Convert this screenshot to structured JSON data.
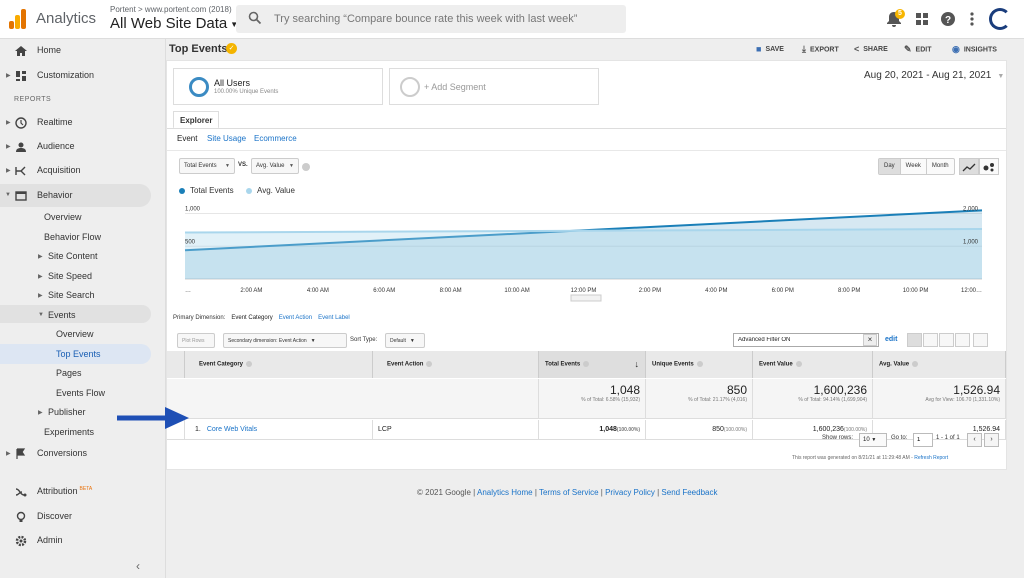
{
  "header": {
    "app_name": "Analytics",
    "account_path": "Portent > www.portent.com (2018)",
    "property_view": "All Web Site Data",
    "search_placeholder": "Try searching “Compare bounce rate this week with last week”",
    "notification_count": "5"
  },
  "sidebar": {
    "home": "Home",
    "customization": "Customization",
    "reports_header": "REPORTS",
    "realtime": "Realtime",
    "audience": "Audience",
    "acquisition": "Acquisition",
    "behavior": "Behavior",
    "behavior_children": {
      "overview": "Overview",
      "behavior_flow": "Behavior Flow",
      "site_content": "Site Content",
      "site_speed": "Site Speed",
      "site_search": "Site Search",
      "events": "Events",
      "events_children": {
        "overview": "Overview",
        "top_events": "Top Events",
        "pages": "Pages",
        "events_flow": "Events Flow"
      },
      "publisher": "Publisher",
      "experiments": "Experiments"
    },
    "conversions": "Conversions",
    "attribution": "Attribution",
    "attribution_badge": "BETA",
    "discover": "Discover",
    "admin": "Admin"
  },
  "report": {
    "title": "Top Events",
    "actions": {
      "save": "SAVE",
      "export": "EXPORT",
      "share": "SHARE",
      "edit": "EDIT",
      "insights": "INSIGHTS"
    },
    "segment": {
      "name": "All Users",
      "sub": "100.00% Unique Events"
    },
    "add_segment": "+ Add Segment",
    "date_range": "Aug 20, 2021 - Aug 21, 2021",
    "tab": "Explorer",
    "subtabs": [
      "Event",
      "Site Usage",
      "Ecommerce"
    ],
    "metric1": "Total Events",
    "vs": "VS.",
    "metric2": "Avg. Value",
    "granularity": [
      "Day",
      "Week",
      "Month"
    ],
    "legend": [
      "Total Events",
      "Avg. Value"
    ]
  },
  "chart_data": {
    "type": "line",
    "x": [
      "…",
      "2:00 AM",
      "4:00 AM",
      "6:00 AM",
      "8:00 AM",
      "10:00 AM",
      "12:00 PM",
      "2:00 PM",
      "4:00 PM",
      "6:00 PM",
      "8:00 PM",
      "10:00 PM",
      "12:00…"
    ],
    "y_left_ticks": [
      "1,000",
      "500"
    ],
    "y_right_ticks": [
      "2,000",
      "1,000"
    ],
    "series": [
      {
        "name": "Total Events",
        "axis": "left",
        "color": "#1a7fb8",
        "start": 440,
        "end": 1048
      },
      {
        "name": "Avg. Value",
        "axis": "right",
        "color": "#a9d6ec",
        "start": 1420,
        "end": 1526.94
      }
    ],
    "ylim_left": [
      0,
      1100
    ],
    "ylim_right": [
      0,
      2200
    ]
  },
  "table": {
    "primary_dimension_label": "Primary Dimension:",
    "dimensions": [
      "Event Category",
      "Event Action",
      "Event Label"
    ],
    "plot_rows": "Plot Rows",
    "secondary_dimension": "Secondary dimension: Event Action",
    "sort_type_label": "Sort Type:",
    "sort_type": "Default",
    "filter_value": "Advanced Filter ON",
    "edit_link": "edit",
    "columns": [
      "Event Category",
      "Event Action",
      "Total Events",
      "Unique Events",
      "Event Value",
      "Avg. Value"
    ],
    "totals": [
      {
        "value": "1,048",
        "sub": "% of Total: 6.58% (15,932)"
      },
      {
        "value": "850",
        "sub": "% of Total: 21.17% (4,016)"
      },
      {
        "value": "1,600,236",
        "sub": "% of Total: 94.14% (1,699,904)"
      },
      {
        "value": "1,526.94",
        "sub": "Avg for View: 106.70 (1,331.10%)"
      }
    ],
    "rows": [
      {
        "index": "1.",
        "category": "Core Web Vitals",
        "action": "LCP",
        "total_events": "1,048",
        "total_events_pct": "(100.00%)",
        "unique_events": "850",
        "unique_events_pct": "(100.00%)",
        "event_value": "1,600,236",
        "event_value_pct": "(100.00%)",
        "avg_value": "1,526.94"
      }
    ],
    "show_rows_label": "Show rows:",
    "show_rows": "10",
    "goto_label": "Go to:",
    "goto": "1",
    "range": "1 - 1 of 1",
    "generated": "This report was generated on 8/21/21 at 11:29:48 AM - ",
    "refresh": "Refresh Report"
  },
  "footer": {
    "copyright": "© 2021 Google | ",
    "links": [
      "Analytics Home",
      "Terms of Service",
      "Privacy Policy",
      "Send Feedback"
    ],
    "sep": " | "
  }
}
